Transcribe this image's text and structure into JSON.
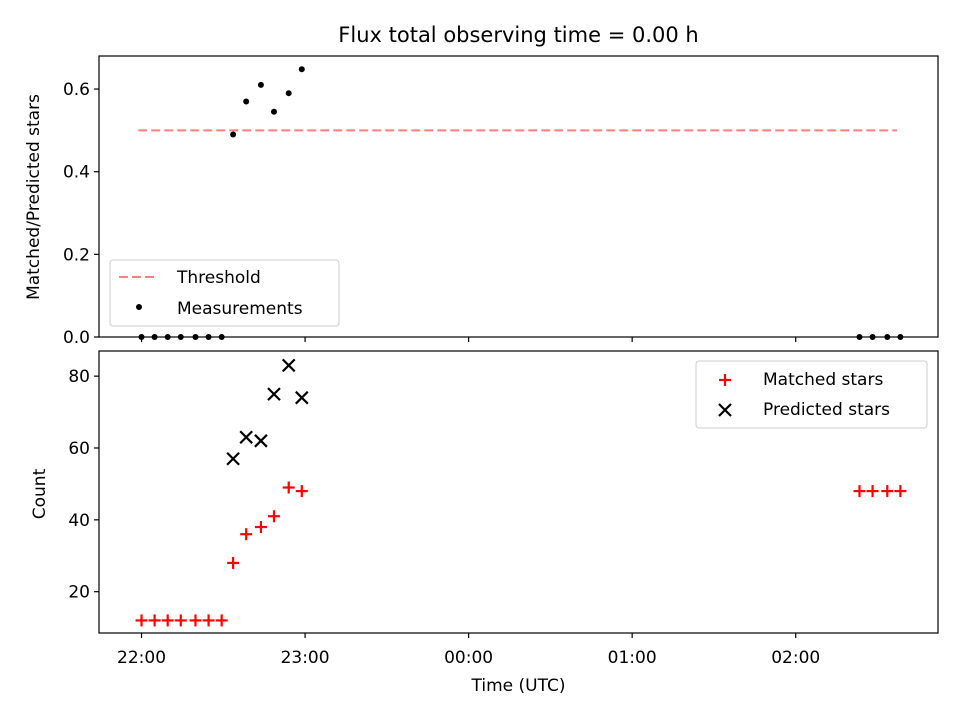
{
  "chart_data": {
    "title": "Flux total observing time = 0.00 h",
    "xlabel": "Time (UTC)",
    "x_tick_labels": [
      "22:00",
      "23:00",
      "00:00",
      "01:00",
      "02:00"
    ],
    "x_tick_hours": [
      0,
      1,
      2,
      3,
      4
    ],
    "x_range_hours": [
      -0.26,
      4.87
    ],
    "panels": [
      {
        "type": "scatter",
        "ylabel": "Matched/Predicted stars",
        "ylim": [
          0,
          0.68
        ],
        "yticks": [
          0.0,
          0.2,
          0.4,
          0.6
        ],
        "ytick_labels": [
          "0.0",
          "0.2",
          "0.4",
          "0.6"
        ],
        "threshold": {
          "name": "Threshold",
          "value": 0.5,
          "x_range_hours": [
            -0.02,
            4.62
          ],
          "color": "#ff7f7f"
        },
        "series": [
          {
            "name": "Measurements",
            "marker": "dot",
            "color": "#000000",
            "points": [
              {
                "x": 0.0,
                "y": 0.0
              },
              {
                "x": 0.08,
                "y": 0.0
              },
              {
                "x": 0.16,
                "y": 0.0
              },
              {
                "x": 0.24,
                "y": 0.0
              },
              {
                "x": 0.33,
                "y": 0.0
              },
              {
                "x": 0.41,
                "y": 0.0
              },
              {
                "x": 0.49,
                "y": 0.0
              },
              {
                "x": 0.56,
                "y": 0.49
              },
              {
                "x": 0.64,
                "y": 0.57
              },
              {
                "x": 0.73,
                "y": 0.61
              },
              {
                "x": 0.81,
                "y": 0.545
              },
              {
                "x": 0.9,
                "y": 0.59
              },
              {
                "x": 0.98,
                "y": 0.648
              },
              {
                "x": 4.39,
                "y": 0.0
              },
              {
                "x": 4.47,
                "y": 0.0
              },
              {
                "x": 4.56,
                "y": 0.0
              },
              {
                "x": 4.64,
                "y": 0.0
              }
            ]
          }
        ],
        "legend": {
          "position": "lower-left",
          "entries": [
            "Threshold",
            "Measurements"
          ]
        }
      },
      {
        "type": "scatter",
        "ylabel": "Count",
        "ylim": [
          8.5,
          87
        ],
        "yticks": [
          20,
          40,
          60,
          80
        ],
        "ytick_labels": [
          "20",
          "40",
          "60",
          "80"
        ],
        "series": [
          {
            "name": "Matched stars",
            "marker": "plus",
            "color": "#ff0000",
            "points": [
              {
                "x": 0.0,
                "y": 12
              },
              {
                "x": 0.08,
                "y": 12
              },
              {
                "x": 0.16,
                "y": 12
              },
              {
                "x": 0.24,
                "y": 12
              },
              {
                "x": 0.33,
                "y": 12
              },
              {
                "x": 0.41,
                "y": 12
              },
              {
                "x": 0.49,
                "y": 12
              },
              {
                "x": 0.56,
                "y": 28
              },
              {
                "x": 0.64,
                "y": 36
              },
              {
                "x": 0.73,
                "y": 38
              },
              {
                "x": 0.81,
                "y": 41
              },
              {
                "x": 0.9,
                "y": 49
              },
              {
                "x": 0.98,
                "y": 48
              },
              {
                "x": 4.39,
                "y": 48
              },
              {
                "x": 4.47,
                "y": 48
              },
              {
                "x": 4.56,
                "y": 48
              },
              {
                "x": 4.64,
                "y": 48
              }
            ]
          },
          {
            "name": "Predicted stars",
            "marker": "x",
            "color": "#000000",
            "points": [
              {
                "x": 0.56,
                "y": 57
              },
              {
                "x": 0.64,
                "y": 63
              },
              {
                "x": 0.73,
                "y": 62
              },
              {
                "x": 0.81,
                "y": 75
              },
              {
                "x": 0.9,
                "y": 83
              },
              {
                "x": 0.98,
                "y": 74
              }
            ]
          }
        ],
        "legend": {
          "position": "top-right",
          "entries": [
            "Matched stars",
            "Predicted stars"
          ]
        }
      }
    ]
  }
}
